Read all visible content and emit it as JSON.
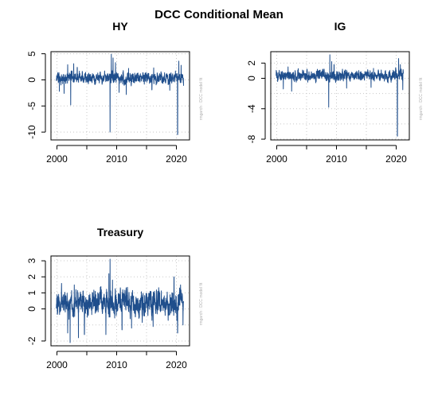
{
  "figure_title": "DCC Conditional Mean",
  "credit_text": "rmgarch : DCC model fit",
  "colors": {
    "series": "#1f4e8c",
    "grid": "#c8c8c8",
    "frame": "#000000",
    "credit": "#b0b0b0"
  },
  "chart_data": [
    {
      "type": "line",
      "title": "HY",
      "xlabel": "",
      "ylabel": "",
      "x_range": [
        1999.9,
        2021.2
      ],
      "xlim": [
        1999.0,
        2022.2
      ],
      "ylim": [
        -11.5,
        5.4
      ],
      "xticks": [
        2000,
        2010,
        2020
      ],
      "xtick_labels": [
        "2000",
        "2010",
        "2020"
      ],
      "xgrid": [
        2000,
        2005,
        2010,
        2015,
        2020
      ],
      "yticks": [
        -10,
        -5,
        0,
        5
      ],
      "ytick_labels": [
        "-10",
        "-5",
        "0",
        "5"
      ],
      "grid": true,
      "noise": 0.75,
      "spikes": [
        [
          2000.4,
          -2.2
        ],
        [
          2001.2,
          -2.6
        ],
        [
          2001.8,
          2.9
        ],
        [
          2002.3,
          -4.8
        ],
        [
          2002.8,
          3.1
        ],
        [
          2003.4,
          2.4
        ],
        [
          2008.9,
          -10.0
        ],
        [
          2009.1,
          4.9
        ],
        [
          2009.4,
          4.2
        ],
        [
          2009.8,
          3.3
        ],
        [
          2010.4,
          -2.4
        ],
        [
          2011.6,
          -2.8
        ],
        [
          2012.0,
          2.2
        ],
        [
          2015.9,
          -1.9
        ],
        [
          2016.2,
          2.3
        ],
        [
          2018.9,
          -2.0
        ],
        [
          2020.2,
          -10.5
        ],
        [
          2020.4,
          3.6
        ],
        [
          2020.8,
          2.8
        ]
      ]
    },
    {
      "type": "line",
      "title": "IG",
      "xlabel": "",
      "ylabel": "",
      "x_range": [
        1999.9,
        2021.2
      ],
      "xlim": [
        1999.0,
        2022.2
      ],
      "ylim": [
        -8.1,
        3.5
      ],
      "xticks": [
        2000,
        2010,
        2020
      ],
      "xtick_labels": [
        "2000",
        "2010",
        "2020"
      ],
      "xgrid": [
        2000,
        2005,
        2010,
        2015,
        2020
      ],
      "yticks": [
        -8,
        -4,
        0,
        2
      ],
      "ytick_labels": [
        "-8",
        "-4",
        "0",
        "2"
      ],
      "ygrid": [
        -8,
        -6,
        -4,
        -2,
        0,
        2
      ],
      "grid": true,
      "noise": 0.5,
      "spikes": [
        [
          2001.1,
          -1.4
        ],
        [
          2001.9,
          1.5
        ],
        [
          2002.5,
          -1.7
        ],
        [
          2008.7,
          -3.8
        ],
        [
          2008.9,
          3.1
        ],
        [
          2009.2,
          2.2
        ],
        [
          2009.6,
          1.8
        ],
        [
          2011.7,
          -1.3
        ],
        [
          2015.8,
          -1.2
        ],
        [
          2016.2,
          1.3
        ],
        [
          2020.2,
          -7.6
        ],
        [
          2020.4,
          2.6
        ],
        [
          2020.7,
          1.8
        ],
        [
          2021.1,
          -1.5
        ]
      ]
    },
    {
      "type": "line",
      "title": "Treasury",
      "xlabel": "",
      "ylabel": "",
      "x_range": [
        1999.9,
        2021.2
      ],
      "xlim": [
        1999.0,
        2022.2
      ],
      "ylim": [
        -2.3,
        3.3
      ],
      "xticks": [
        2000,
        2010,
        2020
      ],
      "xtick_labels": [
        "2000",
        "2010",
        "2020"
      ],
      "xgrid": [
        2000,
        2005,
        2010,
        2015,
        2020
      ],
      "yticks": [
        -2,
        0,
        1,
        2,
        3
      ],
      "ytick_labels": [
        "-2",
        "0",
        "1",
        "2",
        "3"
      ],
      "ygrid": [
        -2,
        -1,
        0,
        1,
        2,
        3
      ],
      "grid": true,
      "noise": 0.55,
      "spikes": [
        [
          2001.8,
          -1.5
        ],
        [
          2002.2,
          -2.1
        ],
        [
          2002.9,
          1.5
        ],
        [
          2003.6,
          -1.8
        ],
        [
          2004.6,
          -1.6
        ],
        [
          2006.4,
          1.1
        ],
        [
          2008.2,
          -1.6
        ],
        [
          2008.7,
          2.2
        ],
        [
          2008.9,
          3.1
        ],
        [
          2009.3,
          1.8
        ],
        [
          2010.9,
          -1.3
        ],
        [
          2011.6,
          1.2
        ],
        [
          2012.5,
          -1.2
        ],
        [
          2016.1,
          -1.1
        ],
        [
          2019.6,
          2.0
        ],
        [
          2020.2,
          -1.5
        ],
        [
          2020.7,
          1.5
        ],
        [
          2021.1,
          -1.0
        ]
      ]
    }
  ]
}
